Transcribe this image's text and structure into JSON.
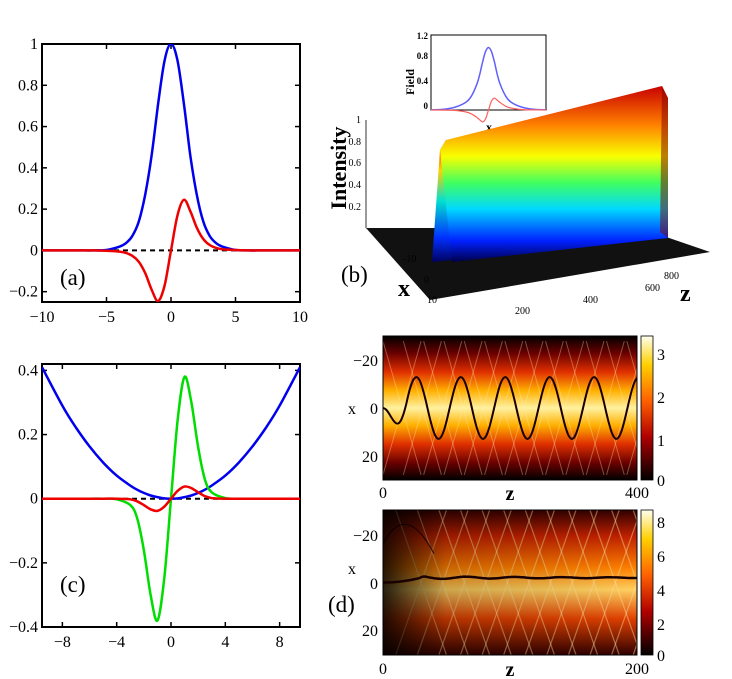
{
  "chart_data": [
    {
      "type": "line",
      "panel": "(a)",
      "xlim": [
        -10,
        10
      ],
      "ylim": [
        -0.25,
        1.0
      ],
      "xticks": [
        -10,
        -5,
        0,
        5,
        10
      ],
      "xtick_labels": [
        "−10",
        "−5",
        "0",
        "5",
        "10"
      ],
      "yticks": [
        -0.2,
        0,
        0.2,
        0.4,
        0.6,
        0.8,
        1
      ],
      "ytick_labels": [
        "−0.2",
        "0",
        "0.2",
        "0.4",
        "0.6",
        "0.8",
        "1"
      ],
      "x": [
        -10,
        -9,
        -8,
        -7,
        -6,
        -5,
        -4,
        -3.5,
        -3,
        -2.5,
        -2,
        -1.5,
        -1,
        -0.5,
        0,
        0.5,
        1,
        1.5,
        2,
        2.5,
        3,
        3.5,
        4,
        5,
        6,
        7,
        8,
        9,
        10
      ],
      "series": [
        {
          "name": "blue",
          "color": "#0000ee",
          "values": [
            0,
            0,
            0,
            0,
            0,
            0.002,
            0.018,
            0.035,
            0.07,
            0.14,
            0.27,
            0.46,
            0.71,
            0.92,
            1.0,
            0.92,
            0.71,
            0.46,
            0.27,
            0.14,
            0.07,
            0.035,
            0.018,
            0.002,
            0,
            0,
            0,
            0,
            0
          ]
        },
        {
          "name": "red",
          "color": "#ee0000",
          "values": [
            0,
            0,
            0,
            0,
            0,
            -0.002,
            -0.006,
            -0.012,
            -0.026,
            -0.055,
            -0.11,
            -0.19,
            -0.245,
            -0.17,
            0,
            0.17,
            0.245,
            0.19,
            0.11,
            0.055,
            0.026,
            0.012,
            0.006,
            0.002,
            0,
            0,
            0,
            0,
            0
          ]
        },
        {
          "name": "zero",
          "color": "#000000",
          "dashed": true,
          "values": [
            0,
            0,
            0,
            0,
            0,
            0,
            0,
            0,
            0,
            0,
            0,
            0,
            0,
            0,
            0,
            0,
            0,
            0,
            0,
            0,
            0,
            0,
            0,
            0,
            0,
            0,
            0,
            0,
            0
          ]
        }
      ]
    },
    {
      "type": "surface3d",
      "panel": "(b)",
      "zlabel": "Intensity",
      "xlabel": "x",
      "ylabel": "z",
      "intensity_ticks": [
        "1",
        "0.8",
        "0.6",
        "0.4",
        "0.2"
      ],
      "x_ticks": [
        "-10",
        "0",
        "10"
      ],
      "z_ticks": [
        "200",
        "400",
        "600",
        "800"
      ],
      "inset": {
        "ylabel": "Field",
        "xlabel": "x",
        "yticks": [
          "1.2",
          "0.8",
          "0.4",
          "0"
        ],
        "x": [
          -10,
          -8,
          -6,
          -4,
          -3,
          -2,
          -1.5,
          -1,
          -0.5,
          0,
          0.5,
          1,
          1.5,
          2,
          3,
          4,
          6,
          8,
          10
        ],
        "ylim": [
          0,
          1.2
        ],
        "blue": [
          0.003,
          0.01,
          0.04,
          0.12,
          0.22,
          0.42,
          0.58,
          0.78,
          0.94,
          1.0,
          0.94,
          0.78,
          0.58,
          0.42,
          0.22,
          0.12,
          0.04,
          0.01,
          0.003
        ],
        "red": [
          0,
          -0.002,
          -0.006,
          -0.03,
          -0.06,
          -0.12,
          -0.16,
          -0.19,
          -0.14,
          0,
          0.14,
          0.19,
          0.16,
          0.12,
          0.06,
          0.03,
          0.006,
          0.002,
          0
        ]
      }
    },
    {
      "type": "line",
      "panel": "(c)",
      "xlim": [
        -9.5,
        9.5
      ],
      "ylim": [
        -0.4,
        0.42
      ],
      "xticks": [
        -8,
        -4,
        0,
        4,
        8
      ],
      "xtick_labels": [
        "−8",
        "−4",
        "0",
        "4",
        "8"
      ],
      "yticks": [
        -0.4,
        -0.2,
        0,
        0.2,
        0.4
      ],
      "ytick_labels": [
        "−0.4",
        "−0.2",
        "0",
        "0.2",
        "0.4"
      ],
      "x": [
        -9.5,
        -8,
        -7,
        -6,
        -5,
        -4,
        -3,
        -2.5,
        -2,
        -1.5,
        -1,
        -0.5,
        0,
        0.5,
        1,
        1.5,
        2,
        2.5,
        3,
        4,
        5,
        6,
        7,
        8,
        9.5
      ],
      "series": [
        {
          "name": "blue",
          "color": "#0000ee",
          "values": [
            0.41,
            0.29,
            0.222,
            0.163,
            0.113,
            0.072,
            0.041,
            0.028,
            0.018,
            0.01,
            0.005,
            0.001,
            0,
            0.001,
            0.005,
            0.01,
            0.018,
            0.028,
            0.041,
            0.072,
            0.113,
            0.163,
            0.222,
            0.29,
            0.41
          ]
        },
        {
          "name": "green",
          "color": "#00dd00",
          "values": [
            0,
            0,
            0,
            0,
            0,
            -0.002,
            -0.02,
            -0.06,
            -0.16,
            -0.3,
            -0.38,
            -0.25,
            0,
            0.25,
            0.38,
            0.3,
            0.16,
            0.06,
            0.02,
            0.002,
            0,
            0,
            0,
            0,
            0
          ]
        },
        {
          "name": "red",
          "color": "#ee0000",
          "values": [
            0,
            0,
            0,
            0,
            0,
            0,
            -0.002,
            -0.008,
            -0.02,
            -0.033,
            -0.038,
            -0.025,
            0,
            0.025,
            0.038,
            0.033,
            0.02,
            0.008,
            0.002,
            0,
            0,
            0,
            0,
            0,
            0
          ]
        },
        {
          "name": "zero",
          "color": "#000000",
          "dashed": true,
          "values": [
            0,
            0,
            0,
            0,
            0,
            0,
            0,
            0,
            0,
            0,
            0,
            0,
            0,
            0,
            0,
            0,
            0,
            0,
            0,
            0,
            0,
            0,
            0,
            0,
            0
          ]
        }
      ]
    },
    {
      "type": "heatmap",
      "panel": "",
      "xlabel": "z",
      "ylabel": "x",
      "xlim": [
        0,
        400
      ],
      "ylim": [
        -28,
        28
      ],
      "xtick_labels": [
        "0",
        "400"
      ],
      "ytick_labels": [
        "−20",
        "0",
        "20"
      ],
      "colorbar_ticks": [
        "3",
        "2",
        "1",
        "0"
      ],
      "colorbar_range": [
        0,
        3.3
      ],
      "trajectory": {
        "x0": 0,
        "amplitude": 12,
        "period": 70
      }
    },
    {
      "type": "heatmap",
      "panel": "(d)",
      "xlabel": "z",
      "ylabel": "x",
      "xlim": [
        0,
        200
      ],
      "ylim": [
        -30,
        30
      ],
      "xtick_labels": [
        "0",
        "200"
      ],
      "ytick_labels": [
        "−20",
        "0",
        "20"
      ],
      "colorbar_ticks": [
        "8",
        "6",
        "4",
        "2",
        "0"
      ],
      "colorbar_range": [
        0,
        8.6
      ],
      "trajectory": {
        "x0": 0,
        "final": -2
      }
    }
  ],
  "labels": {
    "panel_a": "(a)",
    "panel_b": "(b)",
    "panel_c": "(c)",
    "panel_d": "(d)"
  }
}
